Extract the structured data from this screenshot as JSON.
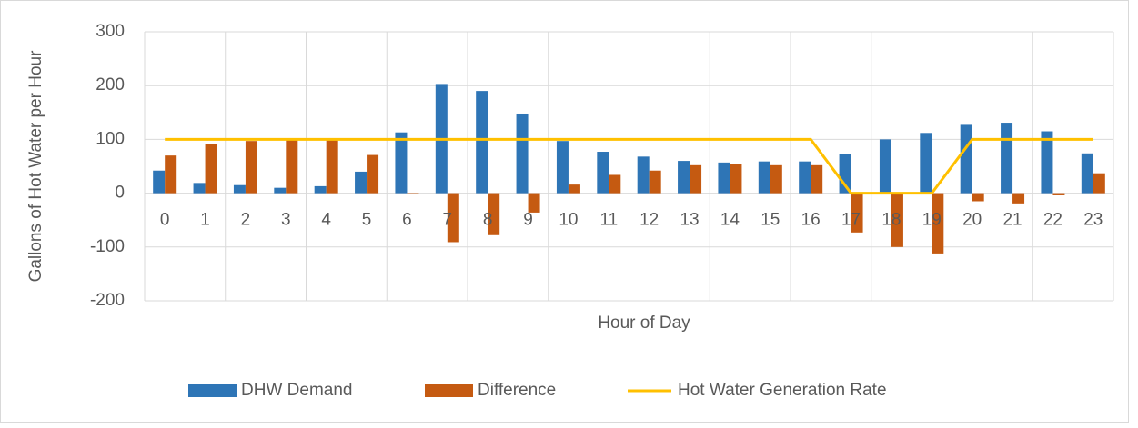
{
  "chart_data": {
    "type": "bar",
    "x_label": "Hour of Day",
    "y_label": "Gallons of Hot Water per Hour",
    "categories": [
      "0",
      "1",
      "2",
      "3",
      "4",
      "5",
      "6",
      "7",
      "8",
      "9",
      "10",
      "11",
      "12",
      "13",
      "14",
      "15",
      "16",
      "17",
      "18",
      "19",
      "20",
      "21",
      "22",
      "23"
    ],
    "series": [
      {
        "name": "DHW Demand",
        "type": "bar",
        "color": "#2e75b6",
        "values": [
          42,
          19,
          15,
          10,
          13,
          40,
          113,
          203,
          190,
          148,
          97,
          77,
          68,
          60,
          57,
          59,
          59,
          73,
          100,
          112,
          127,
          131,
          115,
          74
        ]
      },
      {
        "name": "Difference",
        "type": "bar",
        "color": "#c55a11",
        "values": [
          70,
          92,
          97,
          100,
          98,
          71,
          -2,
          -91,
          -78,
          -36,
          16,
          34,
          42,
          52,
          54,
          52,
          52,
          -73,
          -100,
          -112,
          -15,
          -19,
          -4,
          37
        ]
      },
      {
        "name": "Hot Water Generation Rate",
        "type": "line",
        "color": "#ffc000",
        "values": [
          100,
          100,
          100,
          100,
          100,
          100,
          100,
          100,
          100,
          100,
          100,
          100,
          100,
          100,
          100,
          100,
          100,
          0,
          0,
          0,
          100,
          100,
          100,
          100
        ]
      }
    ],
    "ylim": [
      -200,
      300
    ],
    "yticks": [
      -200,
      -100,
      0,
      100,
      200,
      300
    ],
    "grid": true,
    "x_grid_interval": 2,
    "legend": "bottom"
  }
}
